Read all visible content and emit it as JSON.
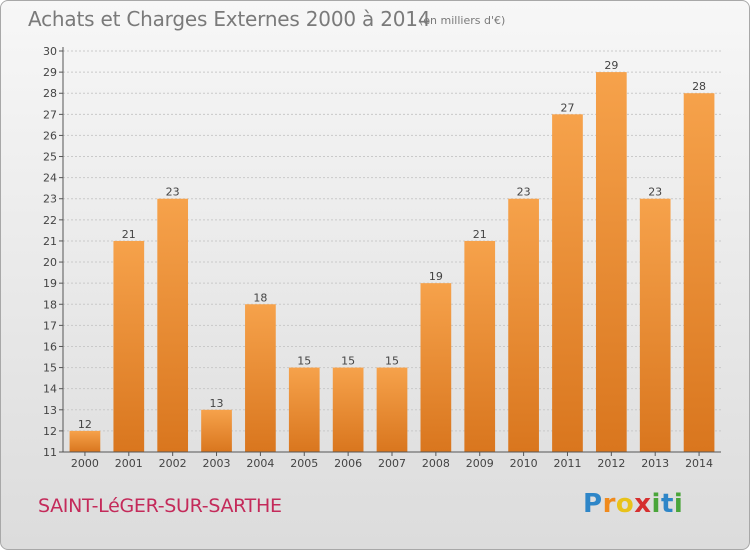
{
  "header": {
    "title": "Achats et Charges Externes 2000 à 2014",
    "unit": "(en milliers d'€)"
  },
  "footer": {
    "commune": "SAINT-LéGER-SUR-SARTHE",
    "logo_letters": [
      "P",
      "r",
      "o",
      "x",
      "i",
      "t",
      "i"
    ],
    "logo_colors": [
      "#2e86c8",
      "#f08a1c",
      "#e8c21a",
      "#d62f2f",
      "#4aa53a",
      "#2e86c8",
      "#4aa53a"
    ]
  },
  "chart_data": {
    "type": "bar",
    "categories": [
      "2000",
      "2001",
      "2002",
      "2003",
      "2004",
      "2005",
      "2006",
      "2007",
      "2008",
      "2009",
      "2010",
      "2011",
      "2012",
      "2013",
      "2014"
    ],
    "values": [
      12,
      21,
      23,
      13,
      18,
      15,
      15,
      15,
      19,
      21,
      23,
      27,
      29,
      23,
      28
    ],
    "ylim": [
      11,
      30
    ],
    "yticks": [
      11,
      12,
      13,
      14,
      15,
      16,
      17,
      18,
      19,
      20,
      21,
      22,
      23,
      24,
      25,
      26,
      27,
      28,
      29,
      30
    ],
    "grid": true,
    "bar_color_top": "#f6a24b",
    "bar_color_bottom": "#d9761e"
  }
}
